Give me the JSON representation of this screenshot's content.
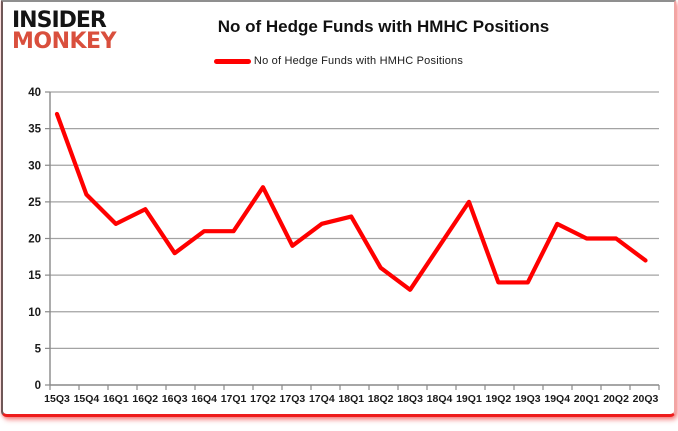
{
  "brand": {
    "line1": "INSIDER",
    "line2": "MONKEY",
    "accent_color": "#d94f3d"
  },
  "title": "No of Hedge Funds with HMHC Positions",
  "legend": {
    "label": "No of Hedge Funds with HMHC Positions",
    "color": "#FF0000"
  },
  "colors": {
    "series": "#FF0000",
    "gridline": "#a3a3a3",
    "axis": "#898989",
    "tick_label": "#1a1a1a",
    "frame_red": "#ee1c1c"
  },
  "chart_data": {
    "type": "line",
    "title": "No of Hedge Funds with HMHC Positions",
    "categories": [
      "15Q3",
      "15Q4",
      "16Q1",
      "16Q2",
      "16Q3",
      "16Q4",
      "17Q1",
      "17Q2",
      "17Q3",
      "17Q4",
      "18Q1",
      "18Q2",
      "18Q3",
      "18Q4",
      "19Q1",
      "19Q2",
      "19Q3",
      "19Q4",
      "20Q1",
      "20Q2",
      "20Q3"
    ],
    "series": [
      {
        "name": "No of Hedge Funds with HMHC Positions",
        "color": "#FF0000",
        "values": [
          37,
          26,
          22,
          24,
          18,
          21,
          21,
          27,
          19,
          22,
          23,
          16,
          13,
          19,
          25,
          14,
          14,
          22,
          20,
          20,
          17
        ]
      }
    ],
    "xlabel": "",
    "ylabel": "",
    "ylim": [
      0,
      40
    ],
    "ytick_step": 5,
    "grid": true,
    "legend_position": "top"
  }
}
